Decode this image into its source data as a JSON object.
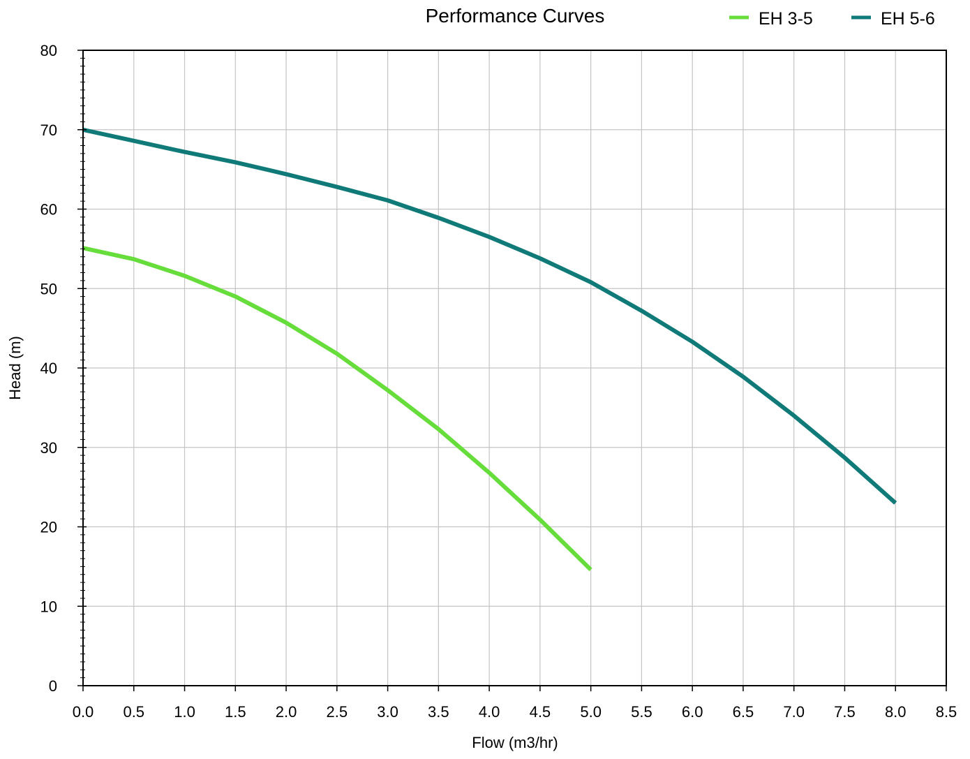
{
  "chart_data": {
    "type": "line",
    "title": "Performance Curves",
    "xlabel": "Flow (m3/hr)",
    "ylabel": "Head (m)",
    "xlim": [
      0,
      8.5
    ],
    "ylim": [
      0,
      80
    ],
    "x_ticks": [
      "0.0",
      "0.5",
      "1.0",
      "1.5",
      "2.0",
      "2.5",
      "3.0",
      "3.5",
      "4.0",
      "4.5",
      "5.0",
      "5.5",
      "6.0",
      "6.5",
      "7.0",
      "7.5",
      "8.0",
      "8.5"
    ],
    "y_ticks": [
      "0",
      "10",
      "20",
      "30",
      "40",
      "50",
      "60",
      "70",
      "80"
    ],
    "grid": true,
    "legend_position": "top-right",
    "series": [
      {
        "name": "EH 3-5",
        "color": "#66dd3b",
        "points": [
          [
            0.0,
            55.1
          ],
          [
            0.5,
            53.7
          ],
          [
            1.0,
            51.6
          ],
          [
            1.5,
            49.0
          ],
          [
            2.0,
            45.7
          ],
          [
            2.5,
            41.8
          ],
          [
            3.0,
            37.2
          ],
          [
            3.5,
            32.3
          ],
          [
            4.0,
            26.8
          ],
          [
            4.5,
            20.9
          ],
          [
            5.0,
            14.6
          ]
        ]
      },
      {
        "name": "EH 5-6",
        "color": "#0f7a78",
        "points": [
          [
            0.0,
            70.0
          ],
          [
            0.5,
            68.6
          ],
          [
            1.0,
            67.2
          ],
          [
            1.5,
            65.9
          ],
          [
            2.0,
            64.4
          ],
          [
            2.5,
            62.8
          ],
          [
            3.0,
            61.1
          ],
          [
            3.5,
            58.9
          ],
          [
            4.0,
            56.5
          ],
          [
            4.5,
            53.8
          ],
          [
            5.0,
            50.8
          ],
          [
            5.5,
            47.2
          ],
          [
            6.0,
            43.3
          ],
          [
            6.5,
            38.9
          ],
          [
            7.0,
            34.0
          ],
          [
            7.5,
            28.7
          ],
          [
            8.0,
            23.0
          ]
        ]
      }
    ]
  }
}
